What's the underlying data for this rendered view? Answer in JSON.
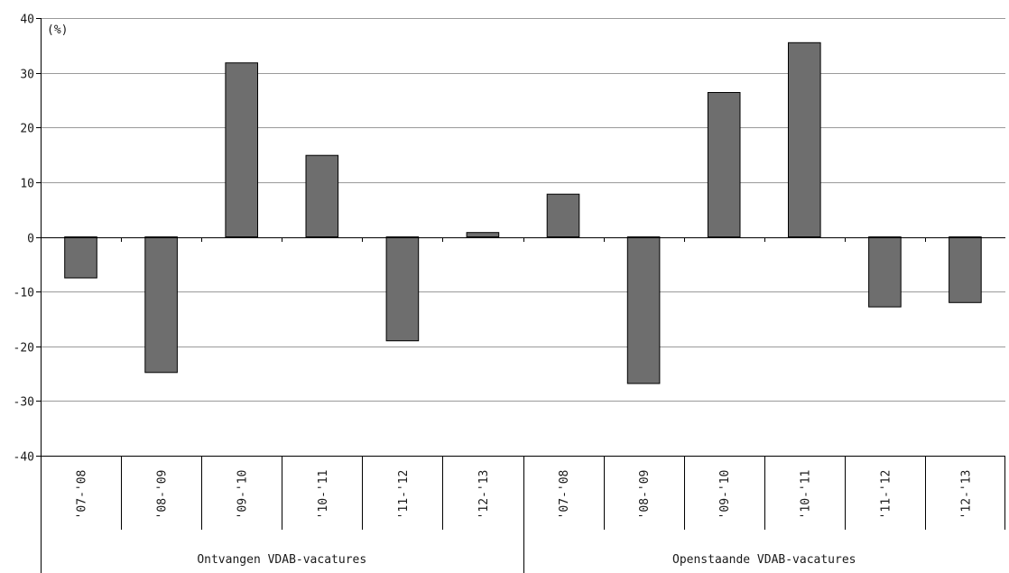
{
  "chart_data": {
    "type": "bar",
    "unit_label": "(%)",
    "ylim": [
      -40,
      40
    ],
    "yticks": [
      40,
      30,
      20,
      10,
      0,
      -10,
      -20,
      -30,
      -40
    ],
    "grid": true,
    "legend": "none",
    "bar_color": "#6e6e6e",
    "groups": [
      {
        "name": "Ontvangen VDAB-vacatures",
        "categories": [
          "'07-'08",
          "'08-'09",
          "'09-'10",
          "'10-'11",
          "'11-'12",
          "'12-'13"
        ],
        "values": [
          -7.5,
          -24.8,
          31.8,
          14.9,
          -19.0,
          0.8
        ]
      },
      {
        "name": "Openstaande VDAB-vacatures",
        "categories": [
          "'07-'08",
          "'08-'09",
          "'09-'10",
          "'10-'11",
          "'11-'12",
          "'12-'13"
        ],
        "values": [
          7.8,
          -26.8,
          26.4,
          35.5,
          -12.8,
          -12.0
        ]
      }
    ]
  }
}
